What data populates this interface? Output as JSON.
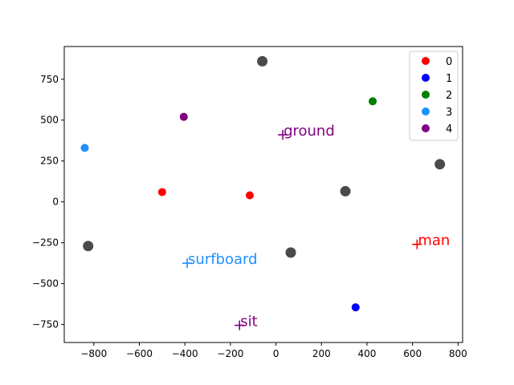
{
  "chart_data": {
    "type": "scatter",
    "title": "",
    "xlabel": "",
    "ylabel": "",
    "xlim": [
      -930,
      820
    ],
    "ylim": [
      -860,
      950
    ],
    "xticks": [
      -800,
      -600,
      -400,
      -200,
      0,
      200,
      400,
      600,
      800
    ],
    "yticks": [
      -750,
      -500,
      -250,
      0,
      250,
      500,
      750
    ],
    "grid": false,
    "legend_position": "top-right",
    "series": [
      {
        "name": "0",
        "color": "#ff0000",
        "points": [
          [
            -500,
            60
          ],
          [
            -115,
            40
          ]
        ]
      },
      {
        "name": "1",
        "color": "#0000ff",
        "points": [
          [
            350,
            -645
          ]
        ]
      },
      {
        "name": "2",
        "color": "#008000",
        "points": [
          [
            425,
            615
          ]
        ]
      },
      {
        "name": "3",
        "color": "#1e90ff",
        "points": [
          [
            -840,
            330
          ]
        ]
      },
      {
        "name": "4",
        "color": "#800080",
        "points": [
          [
            -405,
            520
          ]
        ]
      }
    ],
    "gray_points": {
      "color": "#404040",
      "points": [
        [
          -60,
          860
        ],
        [
          305,
          65
        ],
        [
          720,
          230
        ],
        [
          -825,
          -270
        ],
        [
          65,
          -310
        ]
      ]
    },
    "word_labels": [
      {
        "text": "ground",
        "x": 30,
        "y": 410,
        "color": "#800080"
      },
      {
        "text": "man",
        "x": 620,
        "y": -260,
        "color": "#ff0000"
      },
      {
        "text": "surfboard",
        "x": -390,
        "y": -375,
        "color": "#1e90ff"
      },
      {
        "text": "sit",
        "x": -160,
        "y": -755,
        "color": "#800080"
      }
    ]
  }
}
